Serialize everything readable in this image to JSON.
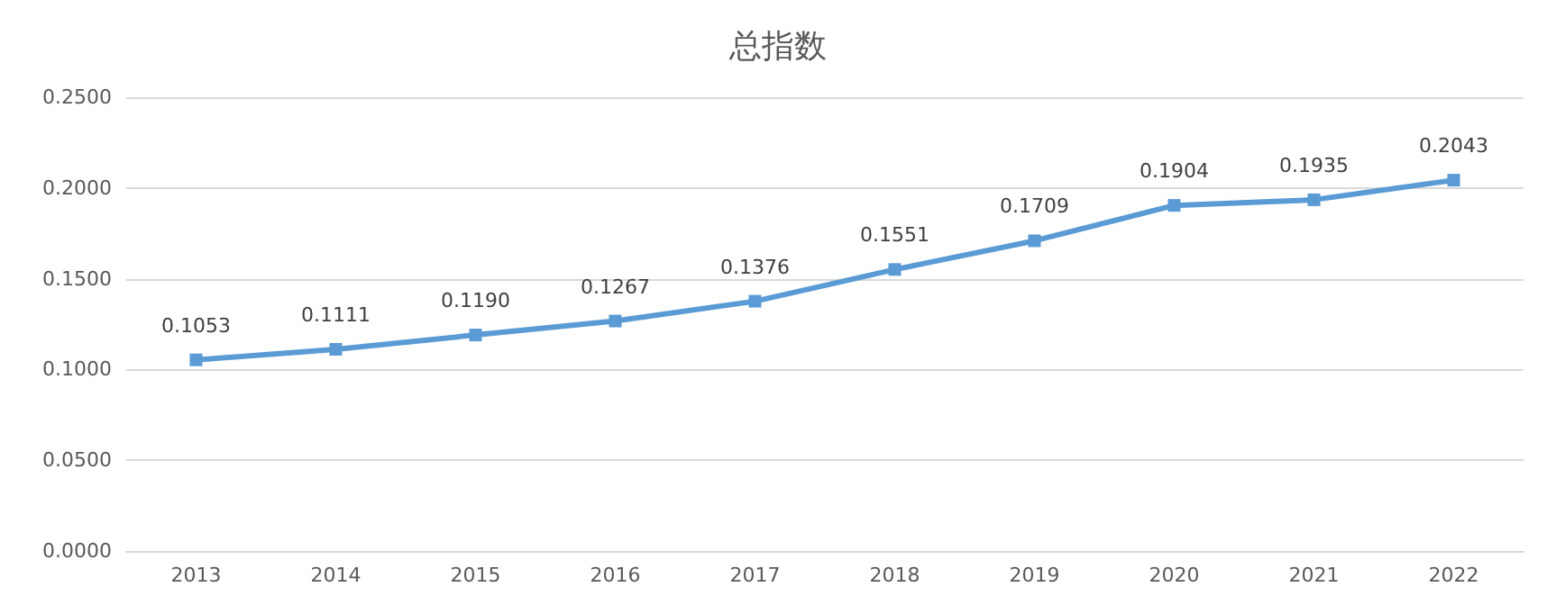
{
  "chart_data": {
    "type": "line",
    "title": "总指数",
    "categories": [
      "2013",
      "2014",
      "2015",
      "2016",
      "2017",
      "2018",
      "2019",
      "2020",
      "2021",
      "2022"
    ],
    "series": [
      {
        "color": "#5b9bd5",
        "values": [
          0.1053,
          0.1111,
          0.119,
          0.1267,
          0.1376,
          0.1551,
          0.1709,
          0.1904,
          0.1935,
          0.2043
        ],
        "value_labels": [
          "0.1053",
          "0.1111",
          "0.1190",
          "0.1267",
          "0.1376",
          "0.1551",
          "0.1709",
          "0.1904",
          "0.1935",
          "0.2043"
        ]
      }
    ],
    "ylim": [
      0,
      0.25
    ],
    "yticks": [
      {
        "value": 0,
        "label": "0.0000"
      },
      {
        "value": 0.05,
        "label": "0.0500"
      },
      {
        "value": 0.1,
        "label": "0.1000"
      },
      {
        "value": 0.15,
        "label": "0.1500"
      },
      {
        "value": 0.2,
        "label": "0.2000"
      },
      {
        "value": 0.25,
        "label": "0.2500"
      }
    ],
    "grid": "y",
    "marker": "square",
    "line_style": "solid"
  }
}
